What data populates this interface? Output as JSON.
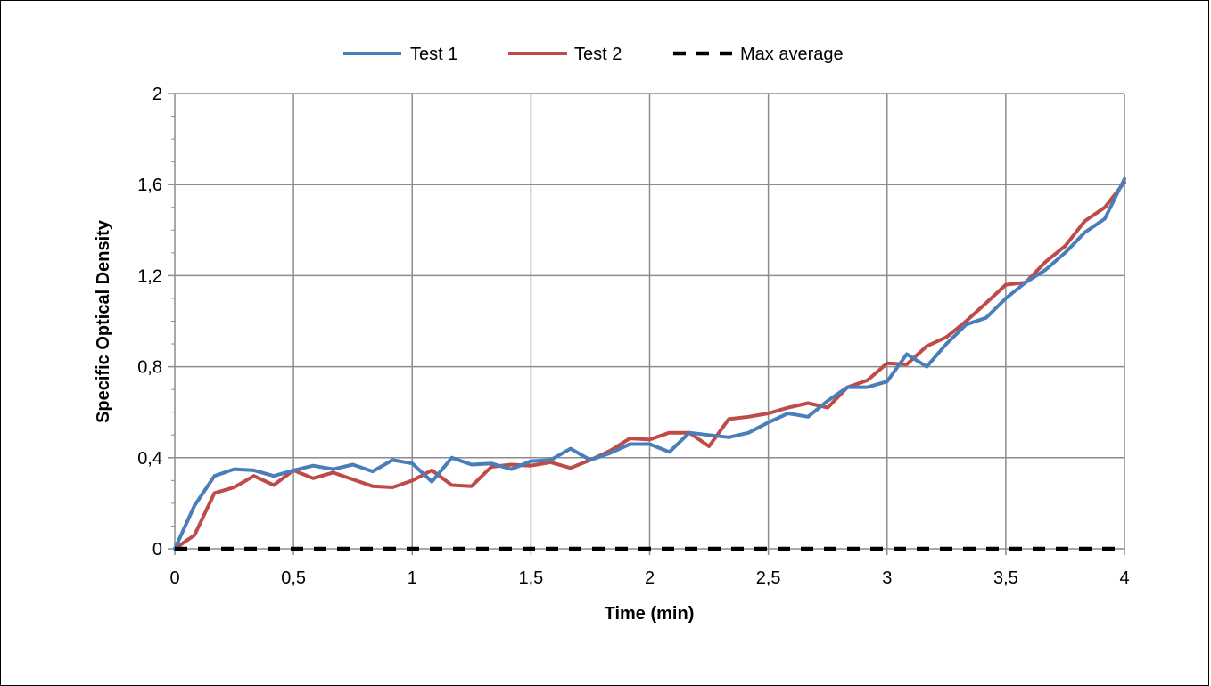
{
  "chart_data": {
    "type": "line",
    "xlabel": "Time (min)",
    "ylabel": "Specific Optical Density",
    "xlim": [
      0,
      4
    ],
    "ylim": [
      0,
      2
    ],
    "x_ticks": [
      "0",
      "0,5",
      "1",
      "1,5",
      "2",
      "2,5",
      "3",
      "3,5",
      "4"
    ],
    "x_tick_values": [
      0,
      0.5,
      1,
      1.5,
      2,
      2.5,
      3,
      3.5,
      4
    ],
    "y_ticks": [
      "0",
      "0,4",
      "0,8",
      "1,2",
      "1,6",
      "2"
    ],
    "y_tick_values": [
      0,
      0.4,
      0.8,
      1.2,
      1.6,
      2
    ],
    "grid": true,
    "legend_position": "top",
    "series": [
      {
        "name": "Test 1",
        "color": "#4A7EBB",
        "dash": "solid",
        "x": [
          0,
          0.083,
          0.167,
          0.25,
          0.333,
          0.417,
          0.5,
          0.583,
          0.667,
          0.75,
          0.833,
          0.917,
          1.0,
          1.083,
          1.167,
          1.25,
          1.333,
          1.417,
          1.5,
          1.583,
          1.667,
          1.75,
          1.833,
          1.917,
          2.0,
          2.083,
          2.167,
          2.25,
          2.333,
          2.417,
          2.5,
          2.583,
          2.667,
          2.75,
          2.833,
          2.917,
          3.0,
          3.083,
          3.167,
          3.25,
          3.333,
          3.417,
          3.5,
          3.583,
          3.667,
          3.75,
          3.833,
          3.917,
          4.0
        ],
        "values": [
          0.0,
          0.19,
          0.32,
          0.35,
          0.345,
          0.32,
          0.345,
          0.365,
          0.35,
          0.37,
          0.34,
          0.39,
          0.375,
          0.295,
          0.4,
          0.37,
          0.375,
          0.35,
          0.385,
          0.39,
          0.44,
          0.39,
          0.42,
          0.46,
          0.46,
          0.425,
          0.51,
          0.5,
          0.49,
          0.51,
          0.555,
          0.595,
          0.58,
          0.65,
          0.71,
          0.71,
          0.735,
          0.855,
          0.8,
          0.9,
          0.985,
          1.015,
          1.1,
          1.17,
          1.225,
          1.3,
          1.39,
          1.45,
          1.625
        ]
      },
      {
        "name": "Test 2",
        "color": "#BE4B48",
        "dash": "solid",
        "x": [
          0,
          0.083,
          0.167,
          0.25,
          0.333,
          0.417,
          0.5,
          0.583,
          0.667,
          0.75,
          0.833,
          0.917,
          1.0,
          1.083,
          1.167,
          1.25,
          1.333,
          1.417,
          1.5,
          1.583,
          1.667,
          1.75,
          1.833,
          1.917,
          2.0,
          2.083,
          2.167,
          2.25,
          2.333,
          2.417,
          2.5,
          2.583,
          2.667,
          2.75,
          2.833,
          2.917,
          3.0,
          3.083,
          3.167,
          3.25,
          3.333,
          3.417,
          3.5,
          3.583,
          3.667,
          3.75,
          3.833,
          3.917,
          4.0
        ],
        "values": [
          0.0,
          0.06,
          0.245,
          0.27,
          0.32,
          0.28,
          0.345,
          0.31,
          0.335,
          0.305,
          0.275,
          0.27,
          0.3,
          0.345,
          0.28,
          0.275,
          0.36,
          0.37,
          0.365,
          0.38,
          0.355,
          0.39,
          0.43,
          0.485,
          0.48,
          0.51,
          0.51,
          0.45,
          0.57,
          0.58,
          0.595,
          0.62,
          0.64,
          0.62,
          0.71,
          0.74,
          0.815,
          0.81,
          0.89,
          0.93,
          1.0,
          1.08,
          1.16,
          1.17,
          1.26,
          1.33,
          1.44,
          1.5,
          1.61
        ]
      },
      {
        "name": "Max average",
        "color": "#000000",
        "dash": "dashed",
        "x": [
          0,
          4
        ],
        "values": [
          0,
          0
        ]
      }
    ]
  }
}
